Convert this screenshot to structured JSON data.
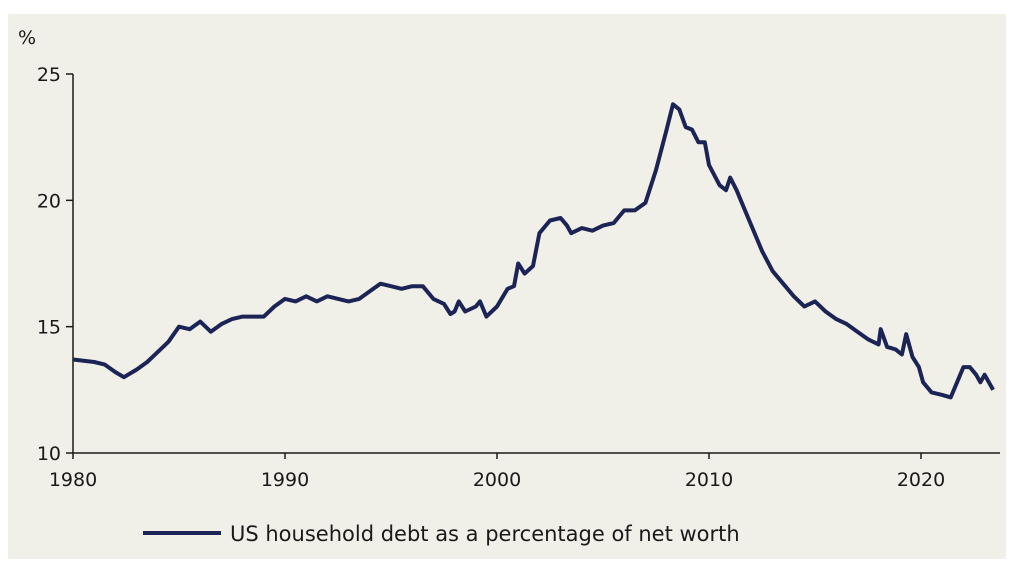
{
  "chart_data": {
    "type": "line",
    "title": "",
    "ylabel": "%",
    "xlabel": "",
    "xlim": [
      1980,
      2024
    ],
    "ylim": [
      10,
      25
    ],
    "xticks": [
      "1980",
      "1990",
      "2000",
      "2010",
      "2020"
    ],
    "yticks": [
      "10",
      "15",
      "20",
      "25"
    ],
    "grid": false,
    "legend_position": "bottom",
    "colors": {
      "line": "#1b2455",
      "background": "#f0efe8"
    },
    "series": [
      {
        "name": "US household debt as a percentage of net worth",
        "x": [
          1980,
          1981,
          1981.5,
          1982,
          1982.4,
          1983,
          1983.5,
          1984,
          1984.5,
          1985,
          1985.5,
          1986,
          1986.5,
          1987,
          1987.5,
          1988,
          1989,
          1989.5,
          1990,
          1990.5,
          1991,
          1991.5,
          1992,
          1993,
          1993.5,
          1994,
          1994.5,
          1995,
          1995.5,
          1996,
          1996.5,
          1997,
          1997.5,
          1997.8,
          1998,
          1998.2,
          1998.5,
          1999,
          1999.2,
          1999.5,
          2000,
          2000.5,
          2000.8,
          2001,
          2001.3,
          2001.7,
          2002,
          2002.5,
          2003,
          2003.3,
          2003.5,
          2004,
          2004.5,
          2005,
          2005.5,
          2006,
          2006.5,
          2007,
          2007.5,
          2008,
          2008.3,
          2008.6,
          2008.9,
          2009.2,
          2009.5,
          2009.8,
          2010,
          2010.5,
          2010.8,
          2011,
          2011.3,
          2011.6,
          2012,
          2012.5,
          2013,
          2013.5,
          2014,
          2014.5,
          2015,
          2015.5,
          2016,
          2016.5,
          2017,
          2017.5,
          2018,
          2018.1,
          2018.4,
          2018.8,
          2019.1,
          2019.3,
          2019.6,
          2019.9,
          2020.1,
          2020.5,
          2021,
          2021.4,
          2021.8,
          2022,
          2022.3,
          2022.6,
          2022.8,
          2023,
          2023.4
        ],
        "values": [
          13.7,
          13.6,
          13.5,
          13.2,
          13.0,
          13.3,
          13.6,
          14.0,
          14.4,
          15.0,
          14.9,
          15.2,
          14.8,
          15.1,
          15.3,
          15.4,
          15.4,
          15.8,
          16.1,
          16.0,
          16.2,
          16.0,
          16.2,
          16.0,
          16.1,
          16.4,
          16.7,
          16.6,
          16.5,
          16.6,
          16.6,
          16.1,
          15.9,
          15.5,
          15.6,
          16.0,
          15.6,
          15.8,
          16.0,
          15.4,
          15.8,
          16.5,
          16.6,
          17.5,
          17.1,
          17.4,
          18.7,
          19.2,
          19.3,
          19.0,
          18.7,
          18.9,
          18.8,
          19.0,
          19.1,
          19.6,
          19.6,
          19.9,
          21.2,
          22.8,
          23.8,
          23.6,
          22.9,
          22.8,
          22.3,
          22.3,
          21.4,
          20.6,
          20.4,
          20.9,
          20.4,
          19.8,
          19.0,
          18.0,
          17.2,
          16.7,
          16.2,
          15.8,
          16.0,
          15.6,
          15.3,
          15.1,
          14.8,
          14.5,
          14.3,
          14.9,
          14.2,
          14.1,
          13.9,
          14.7,
          13.8,
          13.4,
          12.8,
          12.4,
          12.3,
          12.2,
          13.0,
          13.4,
          13.4,
          13.1,
          12.8,
          13.1,
          12.5
        ]
      }
    ]
  }
}
